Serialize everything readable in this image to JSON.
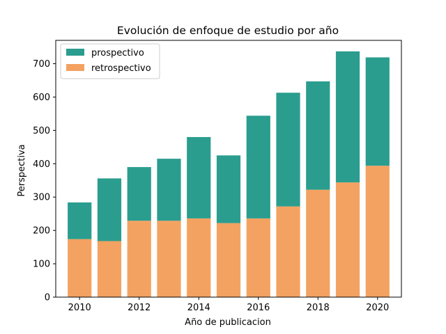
{
  "chart_data": {
    "type": "bar",
    "stacked": true,
    "title": "Evolución de enfoque de estudio por año",
    "xlabel": "Año de publicacion",
    "ylabel": "Perspectiva",
    "x": [
      2010,
      2011,
      2012,
      2013,
      2014,
      2015,
      2016,
      2017,
      2018,
      2019,
      2020
    ],
    "xlim": [
      2009.2,
      2020.8
    ],
    "xticks": [
      2010,
      2012,
      2014,
      2016,
      2018,
      2020
    ],
    "ylim": [
      0,
      770
    ],
    "yticks": [
      0,
      100,
      200,
      300,
      400,
      500,
      600,
      700
    ],
    "grid": false,
    "legend_position": "top-left",
    "series": [
      {
        "name": "retrospectivo",
        "color": "#f4a261",
        "values": [
          174,
          168,
          229,
          229,
          236,
          222,
          236,
          272,
          322,
          344,
          394
        ]
      },
      {
        "name": "prospectivo",
        "color": "#2a9d8f",
        "values": [
          110,
          188,
          161,
          186,
          244,
          203,
          308,
          341,
          325,
          393,
          325
        ]
      }
    ],
    "legend_order": [
      "prospectivo",
      "retrospectivo"
    ]
  }
}
